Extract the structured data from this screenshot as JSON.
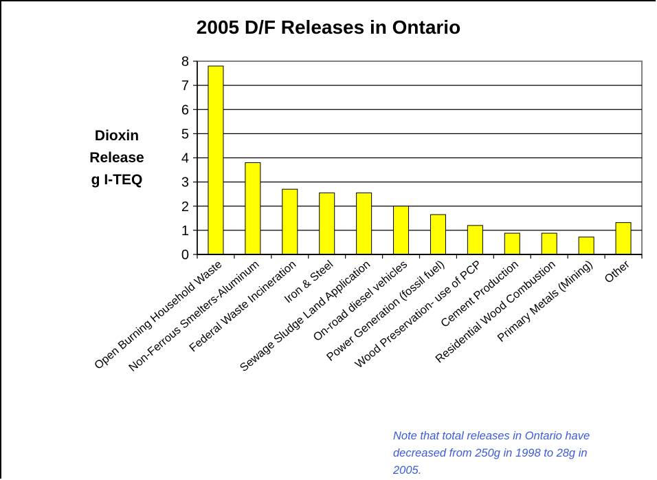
{
  "chart_data": {
    "type": "bar",
    "title": "2005 D/F Releases in Ontario",
    "ylabel_lines": [
      "Dioxin",
      "Release",
      "g I-TEQ"
    ],
    "xlabel": "",
    "ylim": [
      0,
      8
    ],
    "yticks": [
      0,
      1,
      2,
      3,
      4,
      5,
      6,
      7,
      8
    ],
    "grid": true,
    "legend": "none",
    "bar_color": "#ffff00",
    "categories": [
      "Open Burning Household Waste",
      "Non-Ferrous Smelters-Aluminum",
      "Federal Waste Incineration",
      "Iron & Steel",
      "Sewage Sludge Land Application",
      "On-road diesel vehicles",
      "Power Generation (fossil fuel)",
      "Wood Preservation- use of PCP",
      "Cement Production",
      "Residential Wood Combustion",
      "Primary Metals (Mining)",
      "Other"
    ],
    "values": [
      7.8,
      3.8,
      2.7,
      2.55,
      2.55,
      2.0,
      1.65,
      1.2,
      0.88,
      0.88,
      0.72,
      1.32
    ]
  },
  "note": "Note that total releases in Ontario have\ndecreased from 250g in 1998 to 28g in\n2005."
}
